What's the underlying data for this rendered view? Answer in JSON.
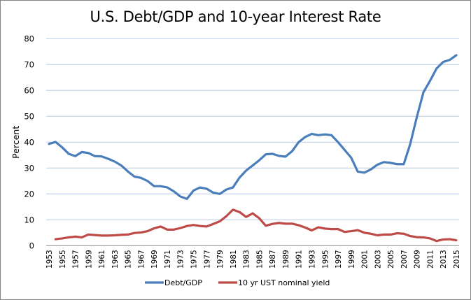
{
  "chart_data": {
    "type": "line",
    "title": "U.S. Debt/GDP and 10-year Interest Rate",
    "xlabel": "",
    "ylabel": "Percent",
    "ylim": [
      0,
      80
    ],
    "yticks": [
      0,
      10,
      20,
      30,
      40,
      50,
      60,
      70,
      80
    ],
    "grid": true,
    "legend_position": "bottom",
    "x": [
      1953,
      1954,
      1955,
      1956,
      1957,
      1958,
      1959,
      1960,
      1961,
      1962,
      1963,
      1964,
      1965,
      1966,
      1967,
      1968,
      1969,
      1970,
      1971,
      1972,
      1973,
      1974,
      1975,
      1976,
      1977,
      1978,
      1979,
      1980,
      1981,
      1982,
      1983,
      1984,
      1985,
      1986,
      1987,
      1988,
      1989,
      1990,
      1991,
      1992,
      1993,
      1994,
      1995,
      1996,
      1997,
      1998,
      1999,
      2000,
      2001,
      2002,
      2003,
      2004,
      2005,
      2006,
      2007,
      2008,
      2009,
      2010,
      2011,
      2012,
      2013,
      2014,
      2015
    ],
    "xtick_labels": [
      "1953",
      "1955",
      "1957",
      "1959",
      "1961",
      "1963",
      "1965",
      "1967",
      "1969",
      "1971",
      "1973",
      "1975",
      "1977",
      "1979",
      "1981",
      "1983",
      "1985",
      "1987",
      "1989",
      "1991",
      "1993",
      "1995",
      "1997",
      "1999",
      "2001",
      "2003",
      "2005",
      "2007",
      "2009",
      "2011",
      "2013",
      "2015"
    ],
    "series": [
      {
        "name": "Debt/GDP",
        "color": "#4a7ebb",
        "values": [
          39.3,
          40.1,
          38.0,
          35.5,
          34.6,
          36.2,
          35.8,
          34.6,
          34.5,
          33.6,
          32.5,
          31.0,
          28.7,
          26.7,
          26.2,
          25.0,
          23.0,
          23.0,
          22.5,
          21.0,
          19.0,
          18.1,
          21.3,
          22.5,
          22.0,
          20.5,
          20.0,
          21.7,
          22.5,
          26.3,
          29.0,
          31.0,
          33.0,
          35.3,
          35.5,
          34.7,
          34.4,
          36.5,
          40.0,
          42.0,
          43.2,
          42.7,
          43.0,
          42.7,
          40.0,
          37.0,
          34.0,
          28.6,
          28.2,
          29.5,
          31.3,
          32.3,
          32.0,
          31.5,
          31.5,
          39.4,
          49.8,
          59.3,
          63.7,
          68.5,
          71.0,
          71.8,
          73.6
        ]
      },
      {
        "name": "10 yr UST nominal yield",
        "color": "#be4b48",
        "values": [
          null,
          2.5,
          2.8,
          3.2,
          3.5,
          3.2,
          4.3,
          4.1,
          3.9,
          3.9,
          4.0,
          4.2,
          4.3,
          4.9,
          5.1,
          5.6,
          6.7,
          7.4,
          6.2,
          6.2,
          6.8,
          7.6,
          8.0,
          7.6,
          7.4,
          8.4,
          9.4,
          11.4,
          13.9,
          13.0,
          11.1,
          12.5,
          10.6,
          7.7,
          8.4,
          8.8,
          8.5,
          8.5,
          7.9,
          7.0,
          5.9,
          7.1,
          6.6,
          6.4,
          6.4,
          5.3,
          5.6,
          6.0,
          5.0,
          4.6,
          4.0,
          4.3,
          4.3,
          4.8,
          4.6,
          3.7,
          3.3,
          3.2,
          2.8,
          1.8,
          2.4,
          2.5,
          2.1
        ]
      }
    ]
  }
}
